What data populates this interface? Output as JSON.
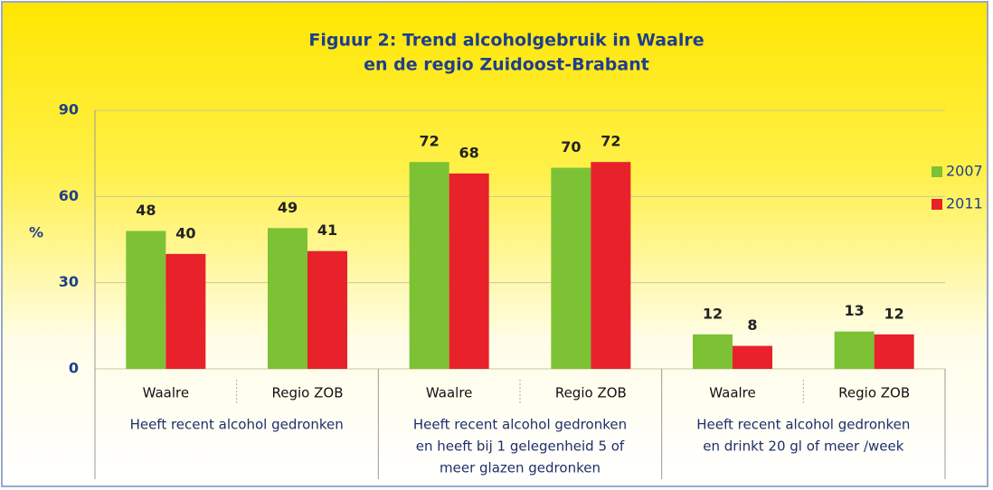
{
  "chart_data": {
    "type": "bar",
    "title": [
      "Figuur 2: Trend alcoholgebruik in Waalre",
      "en de regio Zuidoost-Brabant"
    ],
    "y_label": "%",
    "categories": [
      "Waalre",
      "Regio ZOB",
      "Waalre",
      "Regio ZOB",
      "Waalre",
      "Regio ZOB"
    ],
    "groups": [
      [
        "Heeft recent alcohol gedronken"
      ],
      [
        "Heeft recent alcohol gedronken",
        "en heeft bij 1 gelegenheid 5 of",
        "meer glazen gedronken"
      ],
      [
        "Heeft recent alcohol gedronken",
        "en drinkt 20 gl of meer /week"
      ]
    ],
    "series": [
      {
        "name": "2007",
        "color": "#7cc234",
        "values": [
          48,
          49,
          72,
          70,
          12,
          13
        ]
      },
      {
        "name": "2011",
        "color": "#e8212b",
        "values": [
          40,
          41,
          68,
          72,
          8,
          12
        ]
      }
    ],
    "ylim": [
      0,
      90
    ],
    "yticks": [
      0,
      30,
      60,
      90
    ],
    "grid": true,
    "legend": "right"
  }
}
